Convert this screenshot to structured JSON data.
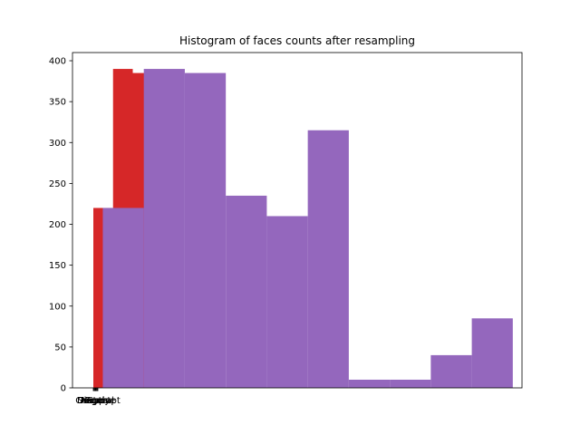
{
  "chart_data": {
    "type": "bar",
    "title": "Histogram of faces counts after resampling",
    "xlabel": "",
    "ylabel": "",
    "ylim": [
      0,
      410
    ],
    "yticks": [
      0,
      50,
      100,
      150,
      200,
      250,
      300,
      350,
      400
    ],
    "xtick_labels": [
      "Anger",
      "Disgust",
      "Fear",
      "Happy",
      "Sad",
      "Surprise",
      "Neutral",
      "Contempt"
    ],
    "grid": false,
    "legend": "none",
    "series": [
      {
        "color": "#d62728",
        "bins": [
          {
            "x0": 0.0,
            "x1": 0.25,
            "value": 220
          },
          {
            "x0": 0.25,
            "x1": 0.5,
            "value": 390
          },
          {
            "x0": 0.5,
            "x1": 0.75,
            "value": 385
          }
        ]
      },
      {
        "color": "#9467bd",
        "bins": [
          {
            "x0": 0.12,
            "x1": 0.64,
            "value": 220
          },
          {
            "x0": 0.64,
            "x1": 1.16,
            "value": 390
          },
          {
            "x0": 1.16,
            "x1": 1.68,
            "value": 385
          },
          {
            "x0": 1.68,
            "x1": 2.2,
            "value": 235
          },
          {
            "x0": 2.2,
            "x1": 2.72,
            "value": 210
          },
          {
            "x0": 2.72,
            "x1": 3.24,
            "value": 315
          },
          {
            "x0": 3.24,
            "x1": 3.76,
            "value": 10
          },
          {
            "x0": 3.76,
            "x1": 4.28,
            "value": 10
          },
          {
            "x0": 4.28,
            "x1": 4.8,
            "value": 40
          },
          {
            "x0": 4.8,
            "x1": 5.32,
            "value": 85
          }
        ]
      }
    ]
  }
}
